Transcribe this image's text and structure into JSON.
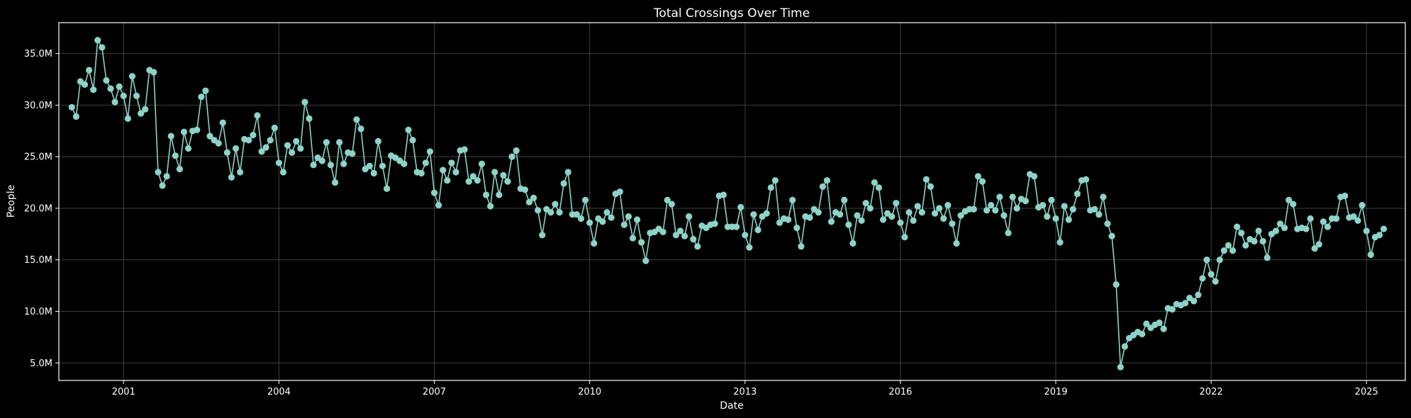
{
  "chart_data": {
    "type": "line",
    "title": "Total Crossings Over Time",
    "xlabel": "Date",
    "ylabel": "People",
    "xlim": [
      "1999-10-01",
      "2025-10-01"
    ],
    "ylim": [
      3.3,
      38.0
    ],
    "xticks": [
      {
        "label": "2001",
        "value": "2001-01-01"
      },
      {
        "label": "2004",
        "value": "2004-01-01"
      },
      {
        "label": "2007",
        "value": "2007-01-01"
      },
      {
        "label": "2010",
        "value": "2010-01-01"
      },
      {
        "label": "2013",
        "value": "2013-01-01"
      },
      {
        "label": "2016",
        "value": "2016-01-01"
      },
      {
        "label": "2019",
        "value": "2019-01-01"
      },
      {
        "label": "2022",
        "value": "2022-01-01"
      },
      {
        "label": "2025",
        "value": "2025-01-01"
      }
    ],
    "yticks": [
      {
        "label": "5.0M",
        "value": 5
      },
      {
        "label": "10.0M",
        "value": 10
      },
      {
        "label": "15.0M",
        "value": 15
      },
      {
        "label": "20.0M",
        "value": 20
      },
      {
        "label": "25.0M",
        "value": 25
      },
      {
        "label": "30.0M",
        "value": 30
      },
      {
        "label": "35.0M",
        "value": 35
      }
    ],
    "grid": true,
    "colors": {
      "series": "#8dd3c7",
      "background": "#000000",
      "text": "#ffffff",
      "grid": "#5a5a5a"
    },
    "series": [
      {
        "x_start": "2000-01",
        "x_step": "month",
        "unit": "millions of people",
        "values": [
          29.8,
          28.9,
          32.3,
          32.0,
          33.4,
          31.5,
          36.3,
          35.6,
          32.4,
          31.6,
          30.3,
          31.8,
          30.9,
          28.7,
          32.8,
          30.9,
          29.2,
          29.6,
          33.4,
          33.2,
          23.5,
          22.2,
          23.1,
          27.0,
          25.1,
          23.8,
          27.4,
          25.8,
          27.5,
          27.6,
          30.8,
          31.4,
          27.0,
          26.6,
          26.3,
          28.3,
          25.4,
          23.0,
          25.8,
          23.5,
          26.7,
          26.6,
          27.1,
          29.0,
          25.5,
          25.9,
          26.6,
          27.8,
          24.4,
          23.5,
          26.1,
          25.4,
          26.5,
          25.8,
          30.3,
          28.7,
          24.2,
          24.9,
          24.6,
          26.4,
          24.2,
          22.5,
          26.4,
          24.3,
          25.4,
          25.3,
          28.6,
          27.7,
          23.8,
          24.1,
          23.4,
          26.5,
          24.1,
          21.9,
          25.1,
          24.9,
          24.6,
          24.3,
          27.6,
          26.6,
          23.5,
          23.4,
          24.4,
          25.5,
          21.5,
          20.3,
          23.7,
          22.7,
          24.4,
          23.5,
          25.6,
          25.7,
          22.6,
          23.1,
          22.7,
          24.3,
          21.3,
          20.2,
          23.5,
          21.3,
          23.2,
          22.6,
          25.0,
          25.6,
          21.9,
          21.8,
          20.6,
          21.0,
          19.8,
          17.4,
          19.9,
          19.6,
          20.4,
          19.6,
          22.4,
          23.5,
          19.4,
          19.4,
          19.0,
          20.8,
          18.6,
          16.6,
          19.0,
          18.7,
          19.6,
          19.1,
          21.4,
          21.6,
          18.4,
          19.2,
          17.1,
          18.9,
          16.7,
          14.9,
          17.6,
          17.7,
          18.0,
          17.7,
          20.8,
          20.4,
          17.4,
          17.8,
          17.3,
          19.2,
          17.0,
          16.3,
          18.3,
          18.1,
          18.4,
          18.5,
          21.2,
          21.3,
          18.2,
          18.2,
          18.2,
          20.1,
          17.4,
          16.2,
          19.4,
          17.9,
          19.2,
          19.5,
          22.0,
          22.7,
          18.6,
          19.0,
          18.9,
          20.8,
          18.1,
          16.3,
          19.2,
          19.1,
          19.9,
          19.6,
          22.1,
          22.7,
          18.7,
          19.6,
          19.4,
          20.8,
          18.4,
          16.6,
          19.3,
          18.8,
          20.5,
          20.0,
          22.5,
          22.0,
          18.9,
          19.5,
          19.2,
          20.5,
          18.6,
          17.2,
          19.6,
          18.8,
          20.2,
          19.6,
          22.8,
          22.1,
          19.5,
          20.0,
          19.0,
          20.3,
          18.5,
          16.6,
          19.3,
          19.7,
          19.9,
          19.9,
          23.1,
          22.6,
          19.8,
          20.3,
          19.8,
          21.1,
          19.3,
          17.6,
          21.1,
          20.0,
          20.9,
          20.7,
          23.3,
          23.1,
          20.1,
          20.3,
          19.2,
          20.8,
          19.0,
          16.7,
          20.2,
          18.9,
          19.9,
          21.4,
          22.7,
          22.8,
          19.8,
          19.9,
          19.4,
          21.1,
          18.5,
          17.3,
          12.6,
          4.6,
          6.6,
          7.4,
          7.7,
          8.0,
          7.8,
          8.8,
          8.4,
          8.7,
          8.9,
          8.3,
          10.3,
          10.2,
          10.7,
          10.6,
          10.8,
          11.3,
          11.0,
          11.6,
          13.2,
          15.0,
          13.6,
          12.9,
          15.0,
          15.9,
          16.4,
          15.9,
          18.2,
          17.6,
          16.4,
          17.0,
          16.8,
          17.8,
          16.8,
          15.2,
          17.5,
          17.8,
          18.5,
          18.1,
          20.8,
          20.4,
          18.0,
          18.1,
          18.0,
          19.0,
          16.1,
          16.5,
          18.7,
          18.2,
          19.0,
          19.0,
          21.1,
          21.2,
          19.1,
          19.2,
          18.8,
          20.3,
          17.8,
          15.5,
          17.2,
          17.4,
          18.0
        ]
      }
    ]
  }
}
